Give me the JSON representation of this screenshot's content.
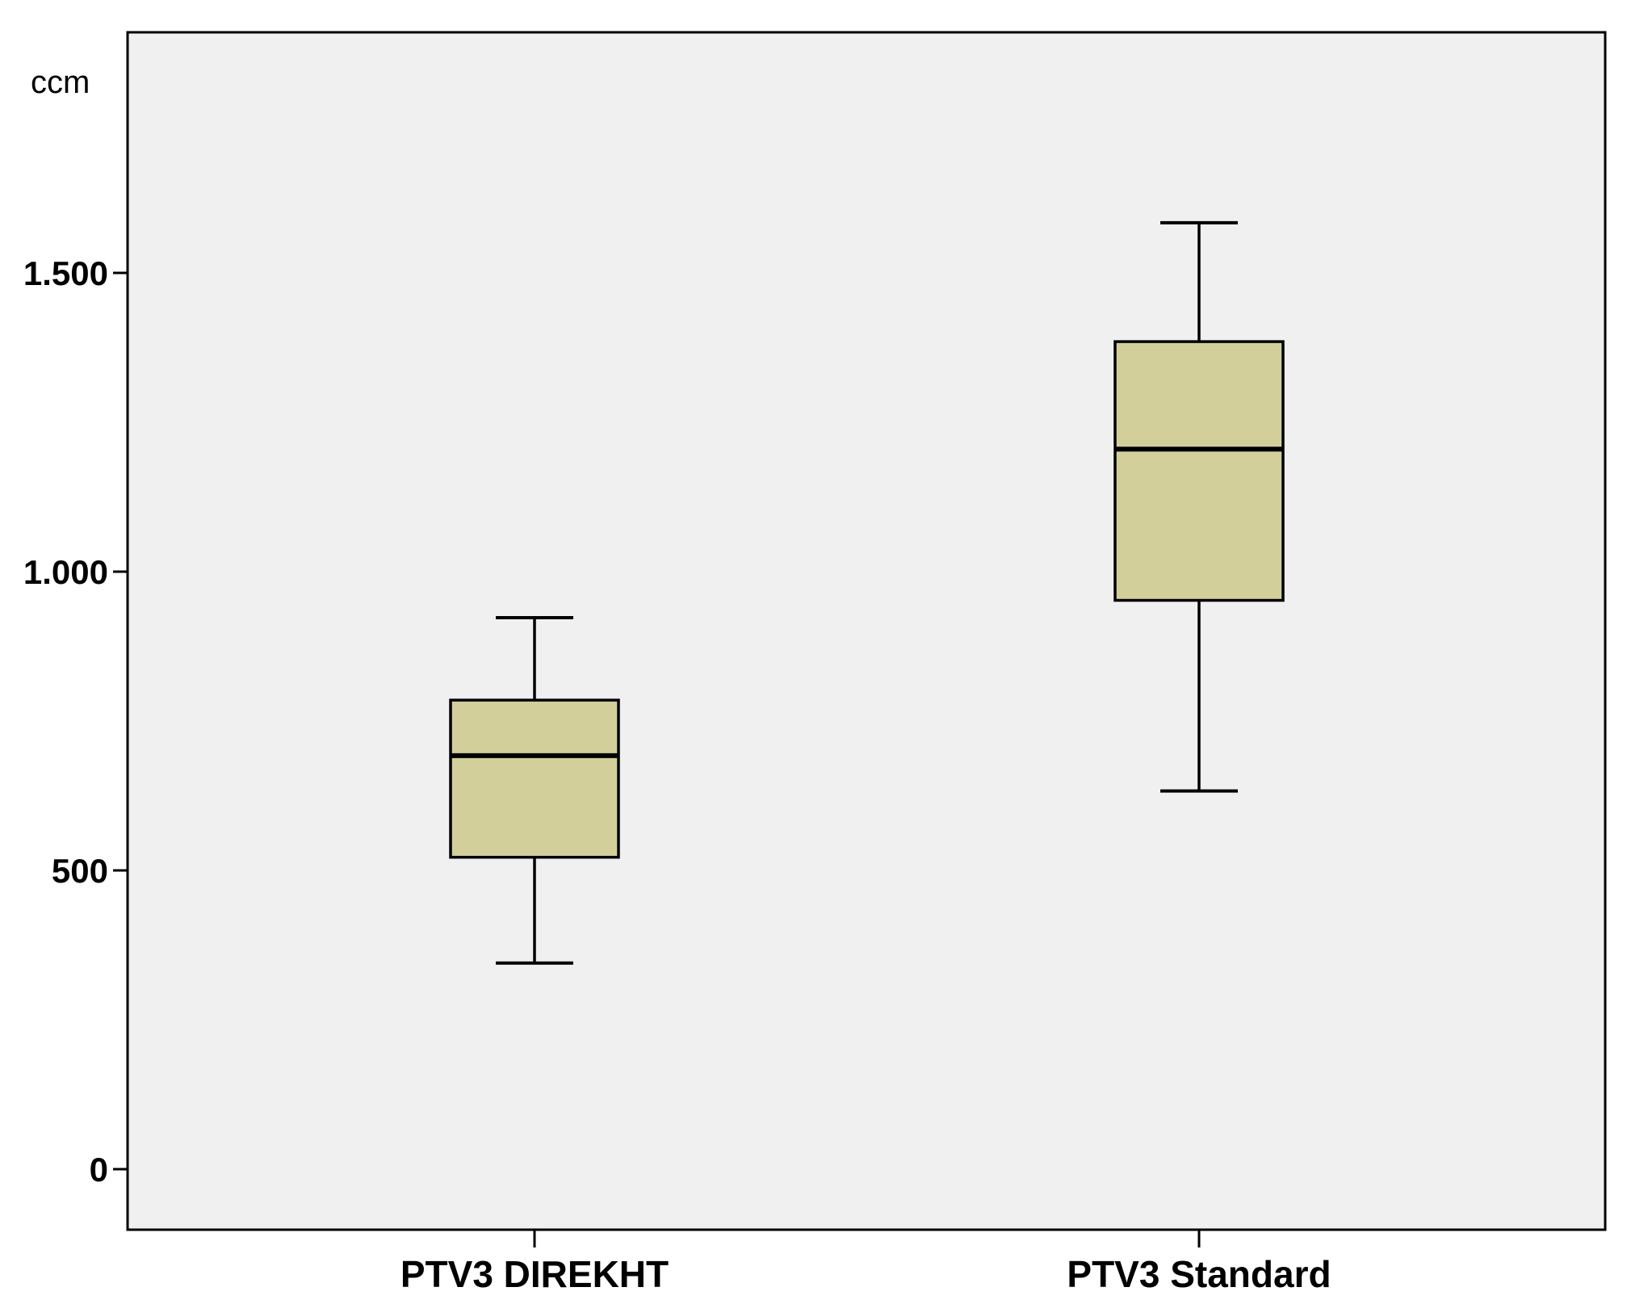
{
  "chart_data": {
    "type": "boxplot",
    "ylabel": "ccm",
    "ylim": [
      -100,
      1900
    ],
    "yticks": [
      0,
      500,
      1000,
      1500
    ],
    "ytick_labels": [
      "0",
      "500",
      "1.000",
      "1.500"
    ],
    "categories": [
      "PTV3 DIREKHT",
      "PTV3 Standard"
    ],
    "boxes": [
      {
        "min": 345,
        "q1": 522,
        "median": 692,
        "q3": 785,
        "max": 923
      },
      {
        "min": 633,
        "q1": 952,
        "median": 1205,
        "q3": 1385,
        "max": 1584
      }
    ],
    "grid": false,
    "colors": {
      "box_fill": "#d3cf9b",
      "plot_bg": "#f0f0f0",
      "stroke": "#000000"
    }
  }
}
